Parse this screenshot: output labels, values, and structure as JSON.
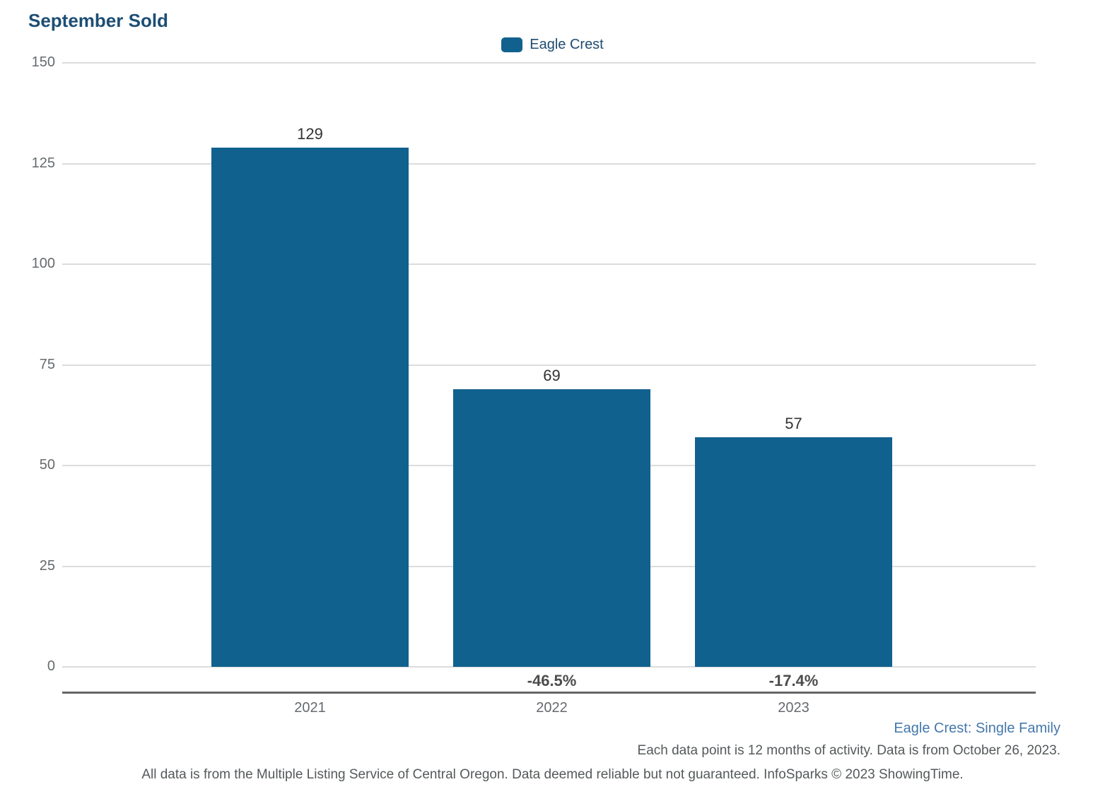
{
  "title": "September Sold",
  "legend": {
    "label": "Eagle Crest",
    "swatch_color": "#11618e"
  },
  "chart_data": {
    "type": "bar",
    "title": "September Sold",
    "categories": [
      "2021",
      "2022",
      "2023"
    ],
    "series": [
      {
        "name": "Eagle Crest",
        "values": [
          129,
          69,
          57
        ]
      }
    ],
    "value_labels": [
      "129",
      "69",
      "57"
    ],
    "pct_change_labels": [
      "",
      "-46.5%",
      "-17.4%"
    ],
    "xlabel": "",
    "ylabel": "",
    "ylim": [
      0,
      150
    ],
    "yticks": [
      0,
      25,
      50,
      75,
      100,
      125,
      150
    ],
    "grid": true,
    "legend_position": "top-center",
    "bar_color": "#11618e"
  },
  "footer": {
    "segment_label": "Eagle Crest: Single Family",
    "data_note": "Each data point is 12 months of activity. Data is from October 26, 2023.",
    "disclaimer": "All data is from the Multiple Listing Service of Central Oregon. Data deemed reliable but not guaranteed. InfoSparks © 2023 ShowingTime."
  },
  "colors": {
    "title": "#1d4e74",
    "bar": "#11618e",
    "gridline": "#dcdcdc",
    "axis_line": "#666666",
    "tick_text": "#666a6e",
    "value_text": "#333333",
    "pct_text": "#4c4c4c",
    "footer_blue": "#4478ac",
    "footer_gray": "#55595b"
  }
}
